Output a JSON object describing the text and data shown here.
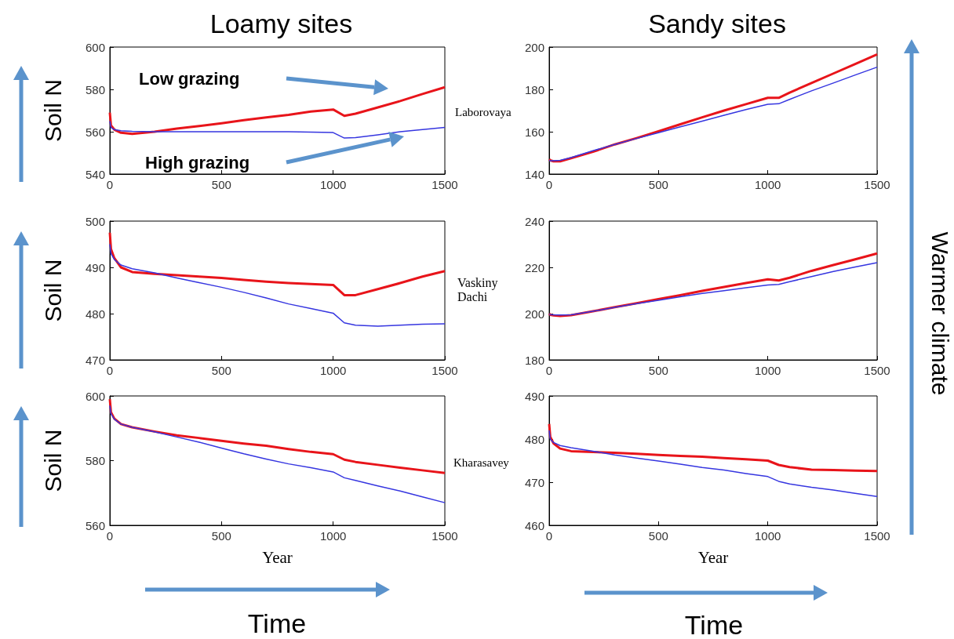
{
  "chart_data": [
    {
      "type": "line",
      "title": "Loamy sites",
      "ylabel": "Soil N",
      "x": [
        0,
        5,
        20,
        50,
        100,
        200,
        300,
        400,
        500,
        600,
        700,
        800,
        900,
        1000,
        1050,
        1100,
        1200,
        1300,
        1400,
        1500
      ],
      "xlim": [
        0,
        1500
      ],
      "xticks": [
        0,
        500,
        1000,
        1500
      ],
      "ylim": [
        540,
        600
      ],
      "yticks": [
        540,
        560,
        580,
        600
      ],
      "annotations": [
        "Low grazing",
        "High grazing",
        "Laborovaya"
      ],
      "series": [
        {
          "color": "#e8141a",
          "values": [
            569,
            563,
            561,
            559.5,
            559,
            560,
            561.5,
            562.7,
            564,
            565.5,
            566.8,
            568,
            569.5,
            570.5,
            567.5,
            568.5,
            571.5,
            574.5,
            577.8,
            581
          ]
        },
        {
          "color": "#3636e0",
          "values": [
            565,
            562,
            561,
            560.5,
            560.2,
            560,
            560,
            560,
            560,
            560,
            560,
            560,
            559.8,
            559.6,
            557,
            557.2,
            558.5,
            560,
            561,
            562
          ]
        }
      ]
    },
    {
      "type": "line",
      "title": "Sandy sites",
      "x": [
        0,
        5,
        20,
        50,
        100,
        200,
        300,
        400,
        500,
        600,
        700,
        800,
        900,
        1000,
        1050,
        1100,
        1200,
        1300,
        1400,
        1500
      ],
      "xlim": [
        0,
        1500
      ],
      "xticks": [
        0,
        500,
        1000,
        1500
      ],
      "ylim": [
        140,
        200
      ],
      "yticks": [
        140,
        160,
        180,
        200
      ],
      "series": [
        {
          "color": "#e8141a",
          "values": [
            147,
            146.5,
            146,
            146,
            147.5,
            150.5,
            154,
            157,
            160.2,
            163.5,
            166.8,
            170,
            173,
            176,
            176,
            178.5,
            183,
            187.5,
            192,
            196.5
          ]
        },
        {
          "color": "#3636e0",
          "values": [
            146.5,
            146.3,
            146.3,
            146.5,
            147.8,
            151,
            154,
            156.8,
            159.5,
            162.3,
            165,
            167.8,
            170.5,
            173,
            173.2,
            175.3,
            179.3,
            183,
            186.8,
            190.5
          ]
        }
      ]
    },
    {
      "type": "line",
      "ylabel": "Soil N",
      "x": [
        0,
        5,
        20,
        50,
        100,
        200,
        300,
        400,
        500,
        600,
        700,
        800,
        900,
        1000,
        1050,
        1100,
        1200,
        1300,
        1400,
        1500
      ],
      "xlim": [
        0,
        1500
      ],
      "xticks": [
        0,
        500,
        1000,
        1500
      ],
      "ylim": [
        470,
        500
      ],
      "yticks": [
        470,
        480,
        490,
        500
      ],
      "annotations": [
        "Vaskiny Dachi"
      ],
      "series": [
        {
          "color": "#e8141a",
          "values": [
            497.5,
            494,
            492,
            490,
            489,
            488.6,
            488.3,
            488,
            487.7,
            487.3,
            486.9,
            486.6,
            486.4,
            486.2,
            484,
            484,
            485.3,
            486.6,
            488,
            489.2
          ]
        },
        {
          "color": "#3636e0",
          "values": [
            495,
            493,
            491.7,
            490.5,
            489.7,
            488.8,
            487.7,
            486.7,
            485.7,
            484.6,
            483.4,
            482.1,
            481.1,
            480.1,
            478,
            477.5,
            477.3,
            477.5,
            477.7,
            477.8
          ]
        }
      ]
    },
    {
      "type": "line",
      "x": [
        0,
        5,
        20,
        50,
        100,
        200,
        300,
        400,
        500,
        600,
        700,
        800,
        900,
        1000,
        1050,
        1100,
        1200,
        1300,
        1400,
        1500
      ],
      "xlim": [
        0,
        1500
      ],
      "xticks": [
        0,
        500,
        1000,
        1500
      ],
      "ylim": [
        180,
        240
      ],
      "yticks": [
        180,
        200,
        220,
        240
      ],
      "annotations": [
        "Warmer climate"
      ],
      "series": [
        {
          "color": "#e8141a",
          "values": [
            200,
            199.5,
            199.2,
            199,
            199.3,
            201,
            202.8,
            204.5,
            206.3,
            208,
            209.8,
            211.5,
            213.2,
            214.8,
            214.3,
            215.5,
            218.5,
            221,
            223.5,
            226
          ]
        },
        {
          "color": "#3636e0",
          "values": [
            199.8,
            199.6,
            199.5,
            199.4,
            199.5,
            201,
            202.7,
            204.3,
            205.8,
            207.3,
            208.7,
            209.9,
            211.2,
            212.4,
            212.6,
            213.8,
            216,
            218.2,
            220.2,
            222
          ]
        }
      ]
    },
    {
      "type": "line",
      "ylabel": "Soil N",
      "xlabel": "Year",
      "x": [
        0,
        5,
        20,
        50,
        100,
        200,
        300,
        400,
        500,
        600,
        700,
        800,
        900,
        1000,
        1050,
        1100,
        1200,
        1300,
        1400,
        1500
      ],
      "xlim": [
        0,
        1500
      ],
      "xticks": [
        0,
        500,
        1000,
        1500
      ],
      "ylim": [
        560,
        600
      ],
      "yticks": [
        560,
        580,
        600
      ],
      "annotations": [
        "Kharasavey",
        "Time"
      ],
      "series": [
        {
          "color": "#e8141a",
          "values": [
            599,
            595,
            593,
            591.3,
            590.3,
            589,
            587.8,
            587,
            586.1,
            585.3,
            584.6,
            583.6,
            582.7,
            582,
            580.3,
            579.6,
            578.7,
            577.8,
            577,
            576.2
          ]
        },
        {
          "color": "#3636e0",
          "values": [
            597,
            594.5,
            592.8,
            591.3,
            590.3,
            588.9,
            587.3,
            585.7,
            583.9,
            582.1,
            580.5,
            579,
            577.8,
            576.5,
            574.7,
            573.9,
            572.2,
            570.6,
            568.8,
            567
          ]
        }
      ]
    },
    {
      "type": "line",
      "xlabel": "Year",
      "x": [
        0,
        5,
        20,
        50,
        100,
        200,
        300,
        400,
        500,
        600,
        700,
        800,
        900,
        1000,
        1050,
        1100,
        1200,
        1300,
        1400,
        1500
      ],
      "xlim": [
        0,
        1500
      ],
      "xticks": [
        0,
        500,
        1000,
        1500
      ],
      "ylim": [
        460,
        490
      ],
      "yticks": [
        460,
        470,
        480,
        490
      ],
      "annotations": [
        "Time"
      ],
      "series": [
        {
          "color": "#e8141a",
          "values": [
            483.5,
            480.5,
            479,
            477.8,
            477.2,
            477,
            476.8,
            476.6,
            476.3,
            476.1,
            475.9,
            475.6,
            475.3,
            475,
            474,
            473.5,
            472.9,
            472.8,
            472.7,
            472.6
          ]
        },
        {
          "color": "#3636e0",
          "values": [
            482,
            480,
            479.2,
            478.5,
            478,
            477.2,
            476.3,
            475.6,
            474.9,
            474.2,
            473.4,
            472.8,
            472,
            471.3,
            470.2,
            469.6,
            468.8,
            468.2,
            467.4,
            466.7
          ]
        }
      ]
    }
  ]
}
